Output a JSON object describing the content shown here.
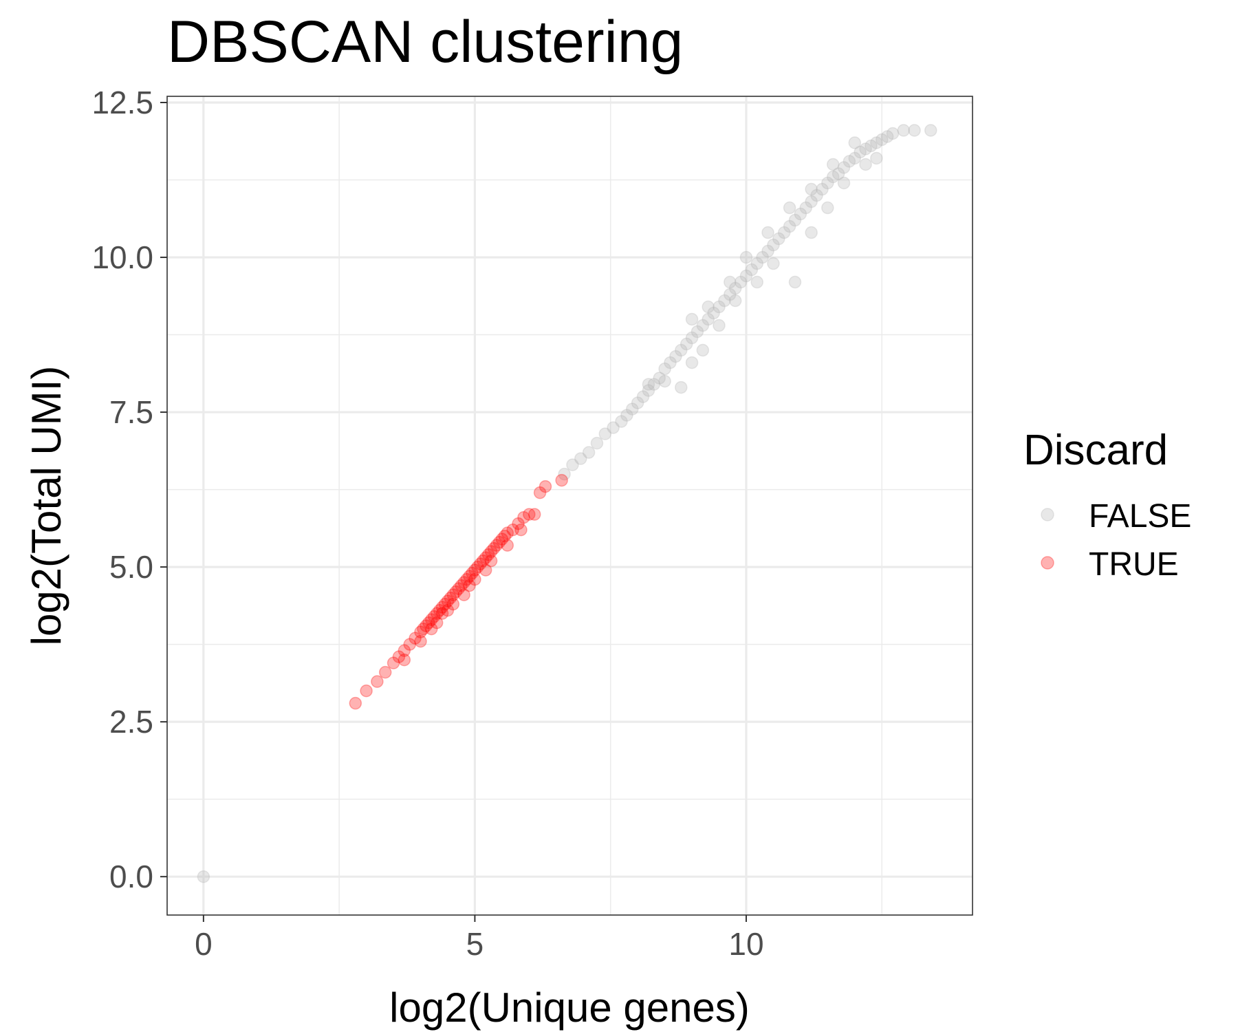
{
  "chart_data": {
    "type": "scatter",
    "title": "DBSCAN clustering",
    "xlabel": "log2(Unique genes)",
    "ylabel": "log2(Total UMI)",
    "xlim": [
      -0.67,
      14.17
    ],
    "ylim": [
      -0.62,
      12.6
    ],
    "x_ticks": [
      0,
      5,
      10
    ],
    "x_tick_labels": [
      "0",
      "5",
      "10"
    ],
    "y_ticks": [
      0,
      2.5,
      5,
      7.5,
      10,
      12.5
    ],
    "y_tick_labels": [
      "0.0",
      "2.5",
      "5.0",
      "7.5",
      "10.0",
      "12.5"
    ],
    "grid": true,
    "legend": {
      "title": "Discard",
      "position": "right",
      "entries": [
        "FALSE",
        "TRUE"
      ]
    },
    "colors": {
      "FALSE": "#b3b3b3",
      "TRUE": "#ff0000"
    },
    "series": [
      {
        "name": "FALSE",
        "color": "#b3b3b3",
        "points": [
          [
            0.0,
            0.0
          ],
          [
            6.65,
            6.5
          ],
          [
            6.8,
            6.65
          ],
          [
            6.95,
            6.75
          ],
          [
            7.1,
            6.85
          ],
          [
            7.25,
            7.0
          ],
          [
            7.4,
            7.15
          ],
          [
            7.55,
            7.25
          ],
          [
            7.7,
            7.35
          ],
          [
            7.8,
            7.45
          ],
          [
            7.9,
            7.55
          ],
          [
            8.0,
            7.65
          ],
          [
            8.1,
            7.75
          ],
          [
            8.2,
            7.85
          ],
          [
            8.3,
            7.95
          ],
          [
            8.4,
            8.05
          ],
          [
            8.5,
            8.2
          ],
          [
            8.6,
            8.3
          ],
          [
            8.7,
            8.4
          ],
          [
            8.8,
            8.5
          ],
          [
            8.9,
            8.6
          ],
          [
            9.0,
            8.7
          ],
          [
            9.1,
            8.8
          ],
          [
            9.2,
            8.9
          ],
          [
            9.3,
            9.0
          ],
          [
            9.4,
            9.1
          ],
          [
            9.5,
            9.2
          ],
          [
            9.6,
            9.3
          ],
          [
            9.7,
            9.4
          ],
          [
            9.8,
            9.5
          ],
          [
            9.9,
            9.6
          ],
          [
            10.0,
            9.7
          ],
          [
            10.1,
            9.8
          ],
          [
            10.2,
            9.9
          ],
          [
            10.3,
            10.0
          ],
          [
            10.4,
            10.1
          ],
          [
            10.5,
            10.2
          ],
          [
            10.6,
            10.3
          ],
          [
            10.7,
            10.4
          ],
          [
            10.8,
            10.5
          ],
          [
            10.9,
            10.6
          ],
          [
            11.0,
            10.7
          ],
          [
            11.1,
            10.8
          ],
          [
            11.2,
            10.9
          ],
          [
            11.3,
            11.0
          ],
          [
            11.4,
            11.1
          ],
          [
            11.5,
            11.2
          ],
          [
            11.6,
            11.3
          ],
          [
            11.7,
            11.35
          ],
          [
            11.8,
            11.45
          ],
          [
            11.9,
            11.55
          ],
          [
            12.0,
            11.6
          ],
          [
            12.1,
            11.7
          ],
          [
            12.2,
            11.75
          ],
          [
            12.3,
            11.8
          ],
          [
            12.4,
            11.85
          ],
          [
            12.5,
            11.9
          ],
          [
            12.6,
            11.95
          ],
          [
            12.7,
            12.0
          ],
          [
            12.9,
            12.05
          ],
          [
            13.1,
            12.05
          ],
          [
            13.4,
            12.05
          ],
          [
            8.2,
            7.95
          ],
          [
            8.5,
            8.0
          ],
          [
            8.8,
            7.9
          ],
          [
            9.0,
            8.3
          ],
          [
            9.2,
            8.5
          ],
          [
            9.5,
            8.9
          ],
          [
            9.8,
            9.3
          ],
          [
            10.2,
            9.6
          ],
          [
            10.5,
            9.9
          ],
          [
            10.9,
            9.6
          ],
          [
            11.2,
            10.4
          ],
          [
            11.5,
            10.8
          ],
          [
            11.8,
            11.2
          ],
          [
            12.2,
            11.5
          ],
          [
            12.4,
            11.6
          ],
          [
            9.0,
            9.0
          ],
          [
            9.3,
            9.2
          ],
          [
            9.7,
            9.6
          ],
          [
            10.0,
            10.0
          ],
          [
            10.4,
            10.4
          ],
          [
            10.8,
            10.8
          ],
          [
            11.2,
            11.1
          ],
          [
            11.6,
            11.5
          ],
          [
            12.0,
            11.85
          ]
        ]
      },
      {
        "name": "TRUE",
        "color": "#ff0000",
        "points": [
          [
            2.8,
            2.8
          ],
          [
            3.0,
            3.0
          ],
          [
            3.2,
            3.15
          ],
          [
            3.35,
            3.3
          ],
          [
            3.5,
            3.45
          ],
          [
            3.6,
            3.55
          ],
          [
            3.7,
            3.65
          ],
          [
            3.8,
            3.75
          ],
          [
            3.9,
            3.85
          ],
          [
            4.0,
            3.95
          ],
          [
            4.05,
            4.0
          ],
          [
            4.1,
            4.05
          ],
          [
            4.15,
            4.1
          ],
          [
            4.2,
            4.15
          ],
          [
            4.25,
            4.2
          ],
          [
            4.3,
            4.25
          ],
          [
            4.35,
            4.3
          ],
          [
            4.4,
            4.35
          ],
          [
            4.45,
            4.4
          ],
          [
            4.5,
            4.45
          ],
          [
            4.55,
            4.5
          ],
          [
            4.6,
            4.55
          ],
          [
            4.65,
            4.6
          ],
          [
            4.7,
            4.65
          ],
          [
            4.75,
            4.7
          ],
          [
            4.8,
            4.75
          ],
          [
            4.85,
            4.8
          ],
          [
            4.9,
            4.85
          ],
          [
            4.95,
            4.9
          ],
          [
            5.0,
            4.95
          ],
          [
            5.05,
            5.0
          ],
          [
            5.1,
            5.05
          ],
          [
            5.15,
            5.1
          ],
          [
            5.2,
            5.15
          ],
          [
            5.25,
            5.2
          ],
          [
            5.3,
            5.25
          ],
          [
            5.35,
            5.3
          ],
          [
            5.4,
            5.35
          ],
          [
            5.45,
            5.4
          ],
          [
            5.5,
            5.45
          ],
          [
            5.55,
            5.5
          ],
          [
            5.6,
            5.55
          ],
          [
            5.7,
            5.6
          ],
          [
            5.8,
            5.7
          ],
          [
            5.9,
            5.8
          ],
          [
            6.0,
            5.85
          ],
          [
            6.2,
            6.2
          ],
          [
            6.3,
            6.3
          ],
          [
            6.6,
            6.4
          ],
          [
            3.7,
            3.5
          ],
          [
            4.0,
            3.8
          ],
          [
            4.3,
            4.1
          ],
          [
            4.6,
            4.4
          ],
          [
            4.9,
            4.7
          ],
          [
            5.2,
            4.95
          ],
          [
            4.4,
            4.25
          ],
          [
            4.8,
            4.55
          ],
          [
            5.0,
            4.8
          ],
          [
            5.3,
            5.1
          ],
          [
            5.6,
            5.35
          ],
          [
            5.85,
            5.6
          ],
          [
            6.1,
            5.85
          ],
          [
            4.2,
            4.0
          ],
          [
            4.5,
            4.3
          ]
        ]
      }
    ]
  }
}
